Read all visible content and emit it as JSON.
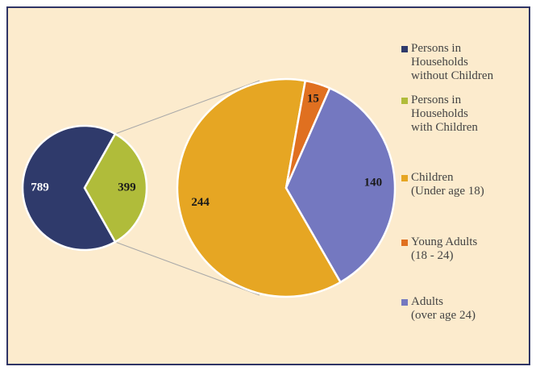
{
  "chart_data": [
    {
      "type": "pie",
      "categories": [
        "Persons in\nHouseholds\nwithout Children",
        "Persons in\nHouseholds\nwith Children"
      ],
      "values": [
        789,
        399
      ],
      "colors": [
        "#2f3a6b",
        "#b0bc3a"
      ]
    },
    {
      "type": "pie",
      "categories": [
        "Children\n(Under age 18)",
        "Young Adults\n(18 - 24)",
        "Adults\n(over age 24)"
      ],
      "values": [
        244,
        15,
        140
      ],
      "colors": [
        "#e6a623",
        "#e07020",
        "#7478c0"
      ]
    }
  ]
}
